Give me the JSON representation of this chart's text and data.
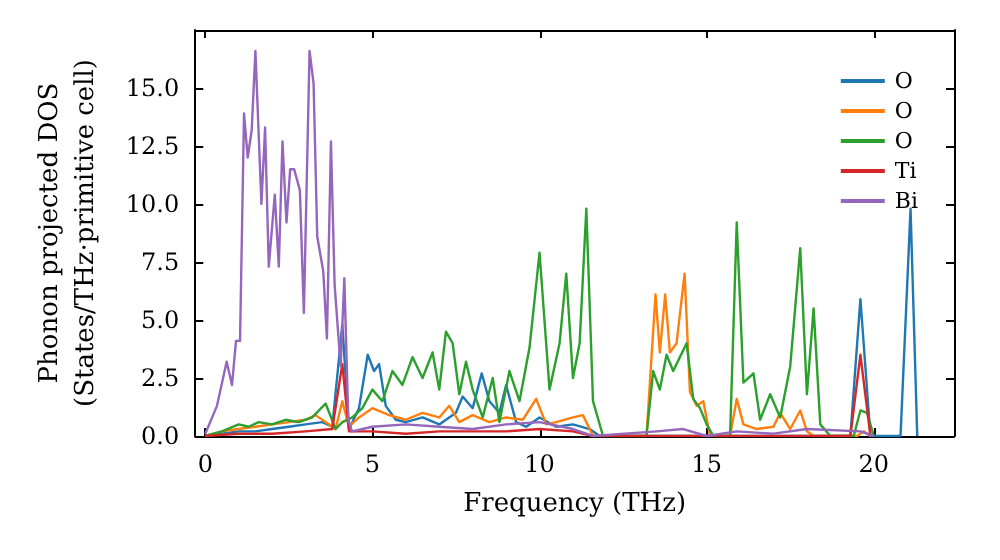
{
  "chart_data": {
    "type": "line",
    "xlabel": "Frequency (THz)",
    "ylabel": "Phonon projected DOS\n(States/THz·primitive cell)",
    "xlim": [
      -0.3,
      22.4
    ],
    "xticks": [
      0,
      5,
      10,
      15,
      20
    ],
    "ylim": [
      0,
      17.5
    ],
    "yticks": [
      {
        "value": 0,
        "label": "0.0"
      },
      {
        "value": 2.5,
        "label": "2.5"
      },
      {
        "value": 5,
        "label": "5.0"
      },
      {
        "value": 7.5,
        "label": "7.5"
      },
      {
        "value": 10,
        "label": "10.0"
      },
      {
        "value": 12.5,
        "label": "12.5"
      },
      {
        "value": 15,
        "label": "15.0"
      }
    ],
    "grid": false,
    "legend": "top right",
    "marker": "none",
    "line_style": "solid",
    "series": [
      {
        "name": "O",
        "color": "#1f77b4",
        "x": [
          0,
          0.5,
          1,
          1.5,
          2,
          2.5,
          3,
          3.5,
          3.8,
          4.1,
          4.3,
          4.6,
          4.86,
          5.05,
          5.2,
          5.4,
          5.7,
          6,
          6.5,
          7,
          7.5,
          7.7,
          8,
          8.27,
          8.5,
          8.8,
          9,
          9.3,
          9.6,
          10,
          10.5,
          11,
          11.5,
          11.8,
          19.3,
          19.6,
          19.9,
          20.8,
          21.1,
          21.3
        ],
        "values": [
          0,
          0.1,
          0.2,
          0.2,
          0.3,
          0.4,
          0.5,
          0.6,
          0.4,
          4.8,
          0.3,
          1.2,
          3.5,
          2.8,
          3.1,
          1.3,
          0.7,
          0.6,
          0.8,
          0.5,
          1.0,
          1.7,
          1.2,
          2.7,
          1.5,
          1.0,
          2.2,
          0.6,
          0.4,
          0.8,
          0.4,
          0.5,
          0.3,
          0,
          0,
          5.9,
          0,
          0,
          9.8,
          0
        ]
      },
      {
        "name": "O",
        "color": "#ff7f0e",
        "x": [
          0,
          0.5,
          1,
          1.5,
          2,
          2.5,
          3,
          3.3,
          3.6,
          3.9,
          4.1,
          4.3,
          4.6,
          5,
          5.5,
          6,
          6.5,
          7,
          7.3,
          7.6,
          8,
          8.5,
          9,
          9.5,
          9.9,
          10.2,
          10.5,
          11,
          11.3,
          11.6,
          13.2,
          13.47,
          13.6,
          13.76,
          13.9,
          14.1,
          14.34,
          14.5,
          14.7,
          14.9,
          15.1,
          15.7,
          15.9,
          16.1,
          16.5,
          17,
          17.2,
          17.5,
          17.8,
          18,
          18.2,
          19.5,
          19.7,
          19.9
        ],
        "values": [
          0,
          0.2,
          0.3,
          0.4,
          0.5,
          0.6,
          0.7,
          0.9,
          0.6,
          0.3,
          1.5,
          0.4,
          0.8,
          1.2,
          0.9,
          0.7,
          1.0,
          0.8,
          1.3,
          0.6,
          0.9,
          0.6,
          0.8,
          0.7,
          1.6,
          0.5,
          0.6,
          0.8,
          0.9,
          0,
          0,
          6.1,
          3.6,
          6.1,
          3.6,
          4.0,
          7.0,
          1.9,
          1.3,
          1.5,
          0,
          0,
          1.6,
          0.5,
          0.3,
          0.4,
          1.0,
          0.3,
          1.1,
          0.2,
          0,
          0,
          0.2,
          0
        ]
      },
      {
        "name": "O",
        "color": "#2ca02c",
        "x": [
          0,
          0.5,
          1,
          1.3,
          1.6,
          2,
          2.4,
          2.8,
          3.2,
          3.6,
          3.9,
          4.1,
          4.4,
          4.7,
          5,
          5.3,
          5.6,
          5.9,
          6.2,
          6.5,
          6.8,
          7.0,
          7.2,
          7.4,
          7.6,
          7.8,
          8.0,
          8.3,
          8.6,
          8.8,
          9.1,
          9.4,
          9.7,
          10.0,
          10.3,
          10.6,
          10.8,
          11.0,
          11.2,
          11.4,
          11.6,
          11.9,
          13.2,
          13.4,
          13.6,
          13.8,
          14.0,
          14.2,
          14.4,
          14.6,
          14.8,
          15.0,
          15.2,
          15.7,
          15.9,
          16.1,
          16.4,
          16.6,
          16.9,
          17.2,
          17.5,
          17.8,
          18.0,
          18.2,
          18.4,
          18.7,
          19.4,
          19.6,
          19.8,
          20.0
        ],
        "values": [
          0,
          0.2,
          0.5,
          0.4,
          0.6,
          0.5,
          0.7,
          0.6,
          0.8,
          1.4,
          0.3,
          0.6,
          0.8,
          1.2,
          2.0,
          1.5,
          2.8,
          2.2,
          3.4,
          2.5,
          3.6,
          2.0,
          4.5,
          4.0,
          1.8,
          3.2,
          2.0,
          0.8,
          2.5,
          0.6,
          2.8,
          1.5,
          3.8,
          7.9,
          2.0,
          4.0,
          7.0,
          2.5,
          4.0,
          9.8,
          1.5,
          0,
          0,
          2.8,
          2.0,
          3.5,
          2.8,
          3.4,
          4.0,
          1.6,
          1.2,
          0.5,
          0,
          0,
          9.2,
          2.3,
          2.7,
          0.7,
          1.8,
          0.8,
          3.0,
          8.1,
          1.8,
          5.5,
          0.5,
          0,
          0,
          1.1,
          1.0,
          0
        ]
      },
      {
        "name": "Ti",
        "color": "#d62728",
        "x": [
          0,
          1,
          2,
          3,
          3.8,
          4.1,
          4.3,
          5,
          6,
          7,
          8,
          9,
          10,
          11,
          11.6,
          19.3,
          19.6,
          19.9
        ],
        "values": [
          0,
          0.1,
          0.1,
          0.2,
          0.3,
          3.1,
          0.2,
          0.2,
          0.1,
          0.2,
          0.2,
          0.2,
          0.3,
          0.2,
          0,
          0,
          3.5,
          0
        ]
      },
      {
        "name": "Bi",
        "color": "#9467bd",
        "x": [
          0,
          0.35,
          0.64,
          0.8,
          0.92,
          1.04,
          1.16,
          1.27,
          1.39,
          1.5,
          1.68,
          1.79,
          1.9,
          2.08,
          2.2,
          2.31,
          2.43,
          2.54,
          2.66,
          2.83,
          2.95,
          3.12,
          3.24,
          3.35,
          3.53,
          3.64,
          3.76,
          3.87,
          4.05,
          4.16,
          4.28,
          4.39,
          5,
          6,
          7,
          8,
          9,
          10,
          11,
          11.6,
          13.5,
          14.3,
          15,
          15.9,
          17,
          18,
          19.6,
          20
        ],
        "values": [
          0.1,
          1.3,
          3.2,
          2.2,
          4.1,
          4.1,
          13.9,
          12.0,
          13.2,
          16.6,
          10.0,
          13.3,
          7.3,
          10.4,
          7.3,
          12.7,
          9.2,
          11.5,
          11.5,
          10.6,
          5.3,
          16.6,
          15.2,
          8.6,
          7.1,
          4.2,
          12.7,
          6.5,
          3.0,
          6.8,
          0.7,
          0.2,
          0.4,
          0.5,
          0.4,
          0.3,
          0.5,
          0.6,
          0.3,
          0,
          0.2,
          0.3,
          0,
          0.2,
          0.1,
          0.3,
          0.2,
          0
        ]
      }
    ]
  }
}
